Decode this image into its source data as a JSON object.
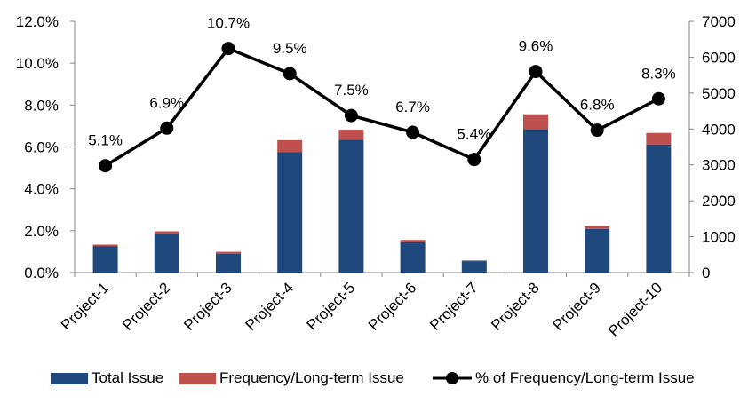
{
  "chart_data": {
    "type": "bar",
    "categories": [
      "Project-1",
      "Project-2",
      "Project-3",
      "Project-4",
      "Project-5",
      "Project-6",
      "Project-7",
      "Project-8",
      "Project-9",
      "Project-10"
    ],
    "series": [
      {
        "name": "Total Issue",
        "kind": "stacked-bar",
        "axis": "right",
        "color": "#1f497d",
        "values": [
          740,
          1070,
          520,
          3360,
          3700,
          850,
          320,
          4000,
          1220,
          3570
        ]
      },
      {
        "name": "Frequency/Long-term Issue",
        "kind": "stacked-bar",
        "axis": "right",
        "color": "#c0504d",
        "values": [
          40,
          80,
          60,
          330,
          280,
          60,
          20,
          410,
          80,
          320
        ]
      },
      {
        "name": "% of Frequency/Long-term Issue",
        "kind": "line",
        "axis": "left",
        "color": "#000000",
        "values": [
          5.1,
          6.9,
          10.7,
          9.5,
          7.5,
          6.7,
          5.4,
          9.6,
          6.8,
          8.3
        ],
        "labels": [
          "5.1%",
          "6.9%",
          "10.7%",
          "9.5%",
          "7.5%",
          "6.7%",
          "5.4%",
          "9.6%",
          "6.8%",
          "8.3%"
        ]
      }
    ],
    "y_left": {
      "min": 0,
      "max": 12,
      "step": 2,
      "ticks": [
        "0.0%",
        "2.0%",
        "4.0%",
        "6.0%",
        "8.0%",
        "10.0%",
        "12.0%"
      ]
    },
    "y_right": {
      "min": 0,
      "max": 7000,
      "step": 1000,
      "ticks": [
        "0",
        "1000",
        "2000",
        "3000",
        "4000",
        "5000",
        "6000",
        "7000"
      ]
    },
    "grid": false,
    "legend_position": "bottom"
  },
  "legend": {
    "total": "Total Issue",
    "freq": "Frequency/Long-term Issue",
    "pct": "% of Frequency/Long-term Issue"
  }
}
